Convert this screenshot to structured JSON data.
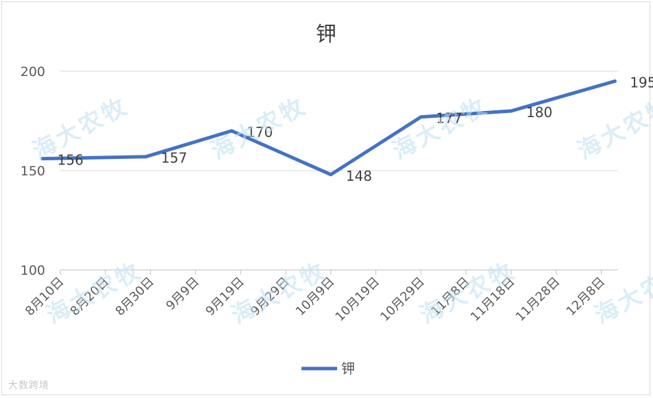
{
  "chart_data": {
    "type": "line",
    "title": "钾",
    "categories": [
      "8月10日",
      "8月20日",
      "8月30日",
      "9月9日",
      "9月19日",
      "9月29日",
      "10月9日",
      "10月19日",
      "10月29日",
      "11月8日",
      "11月18日",
      "11月28日",
      "12月8日"
    ],
    "series": [
      {
        "name": "钾",
        "color": "#4472c4",
        "points": [
          {
            "x": "8月6日",
            "y": 156
          },
          {
            "x": "8月29日",
            "y": 157
          },
          {
            "x": "9月17日",
            "y": 170
          },
          {
            "x": "10月9日",
            "y": 148
          },
          {
            "x": "10月29日",
            "y": 177
          },
          {
            "x": "11月18日",
            "y": 180
          },
          {
            "x": "12月11日",
            "y": 195
          }
        ]
      }
    ],
    "data_labels": [
      "156",
      "157",
      "170",
      "148",
      "177",
      "180",
      "195"
    ],
    "yticks": [
      100,
      150,
      200
    ],
    "ylim": [
      100,
      200
    ],
    "grid": true,
    "legend": "bottom"
  },
  "watermark": {
    "text": "海大农牧",
    "corner_text": "大数跨境",
    "color": "#bfe0f2"
  }
}
